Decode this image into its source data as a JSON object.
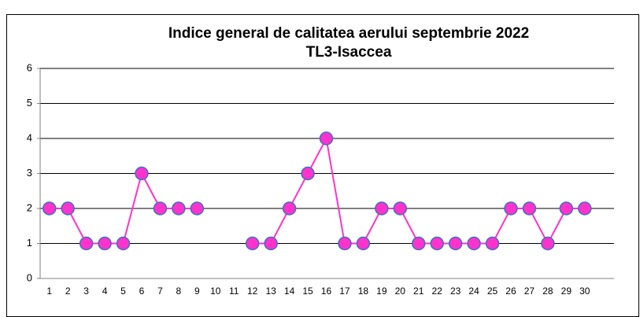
{
  "chart_data": {
    "type": "line",
    "title": "Indice general de calitatea aerului  septembrie  2022",
    "subtitle": "TL3-Isaccea",
    "categories": [
      "1",
      "2",
      "3",
      "4",
      "5",
      "6",
      "7",
      "8",
      "9",
      "10",
      "11",
      "12",
      "13",
      "14",
      "15",
      "16",
      "17",
      "18",
      "19",
      "20",
      "21",
      "22",
      "23",
      "24",
      "25",
      "26",
      "27",
      "28",
      "29",
      "30"
    ],
    "series": [
      {
        "color": "#ff33cc",
        "values": [
          2,
          2,
          1,
          1,
          1,
          3,
          2,
          2,
          2,
          null,
          null,
          1,
          1,
          2,
          3,
          4,
          1,
          1,
          2,
          2,
          1,
          1,
          1,
          1,
          1,
          2,
          2,
          1,
          2,
          2
        ]
      }
    ],
    "ylim": [
      0,
      6
    ],
    "yticks": [
      0,
      1,
      2,
      3,
      4,
      5,
      6
    ],
    "grid": true
  }
}
